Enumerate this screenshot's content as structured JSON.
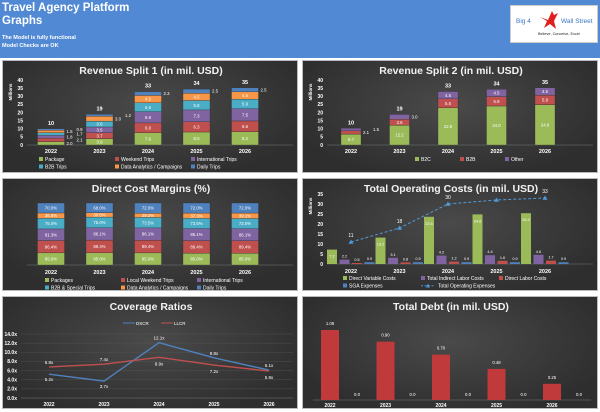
{
  "header": {
    "title_line1": "Travel Agency Platform",
    "title_line2": "Graphs",
    "status_line1": "The Model is fully functional",
    "status_line2": "Model Checks are OK",
    "background_color": "#5189d4"
  },
  "logo": {
    "left_text": "Big 4",
    "right_text": "Wall Street",
    "tagline": "Believe, Conceive, Excel",
    "icon": "red-eagle-icon"
  },
  "chart_data": [
    {
      "type": "bar",
      "stacked": true,
      "title": "Revenue Split 1 (in mil. USD)",
      "ylabel": "Millions",
      "ylim": [
        0,
        40
      ],
      "yticks": [
        0,
        5,
        10,
        15,
        20,
        25,
        30,
        35,
        40
      ],
      "categories": [
        "2022",
        "2023",
        "2024",
        "2025",
        "2026"
      ],
      "totals": [
        "10",
        "19",
        "33",
        "34",
        "35"
      ],
      "series": [
        {
          "name": "Package",
          "color": "#9bbb59",
          "values": [
            2.0,
            3.9,
            7.6,
            8.0,
            8.2
          ]
        },
        {
          "name": "Weekend Trips",
          "color": "#c0504d",
          "values": [
            2.1,
            3.7,
            6.0,
            6.3,
            6.6
          ]
        },
        {
          "name": "International Trips",
          "color": "#8064a2",
          "values": [
            1.8,
            3.5,
            6.9,
            7.3,
            7.5
          ]
        },
        {
          "name": "B2B Trips",
          "color": "#4bacc6",
          "values": [
            1.7,
            3.6,
            5.5,
            5.8,
            5.9
          ]
        },
        {
          "name": "Data Analytics / Campaigns",
          "color": "#f79646",
          "values": [
            1.5,
            3.0,
            4.5,
            4.5,
            4.5
          ]
        },
        {
          "name": "Daily Trips",
          "color": "#4f81bd",
          "values": [
            0.9,
            1.2,
            2.3,
            2.5,
            2.5
          ]
        }
      ],
      "legend": "bottom"
    },
    {
      "type": "bar",
      "stacked": true,
      "title": "Revenue Split 2 (in mil. USD)",
      "ylabel": "Millions",
      "ylim": [
        0,
        40
      ],
      "yticks": [
        0,
        5,
        10,
        15,
        20,
        25,
        30,
        35,
        40
      ],
      "categories": [
        "2022",
        "2023",
        "2024",
        "2025",
        "2026"
      ],
      "totals": [
        "10",
        "19",
        "33",
        "34",
        "35"
      ],
      "series": [
        {
          "name": "B2C",
          "color": "#9bbb59",
          "values": [
            6.7,
            12.2,
            22.9,
            24.0,
            24.8
          ]
        },
        {
          "name": "B2B",
          "color": "#c0504d",
          "values": [
            2.1,
            3.6,
            5.5,
            5.8,
            5.9
          ]
        },
        {
          "name": "Other",
          "color": "#8064a2",
          "values": [
            1.5,
            3.0,
            4.5,
            4.5,
            4.5
          ]
        }
      ],
      "legend": "bottom"
    },
    {
      "type": "bar",
      "stacked": true,
      "title": "Direct Cost Margins (%)",
      "categories": [
        "2022",
        "2023",
        "2024",
        "2025",
        "2026"
      ],
      "series": [
        {
          "name": "Packages",
          "color": "#9bbb59",
          "values": [
            85.0,
            85.0,
            85.0,
            85.0,
            85.0
          ]
        },
        {
          "name": "Local Weekend Trips",
          "color": "#c0504d",
          "values": [
            86.4,
            89.4,
            89.4,
            89.4,
            89.4
          ]
        },
        {
          "name": "International Trips",
          "color": "#8064a2",
          "values": [
            81.3,
            86.1,
            86.1,
            86.1,
            86.1
          ]
        },
        {
          "name": "B2B & Special Trips",
          "color": "#4bacc6",
          "values": [
            75.0,
            75.0,
            73.5,
            73.5,
            73.5
          ]
        },
        {
          "name": "Data Analytics / Campaigns",
          "color": "#f79646",
          "values": [
            36.8,
            30.5,
            29.2,
            37.3,
            39.1
          ]
        },
        {
          "name": "Daily Trips",
          "color": "#4f81bd",
          "values": [
            70.0,
            68.0,
            72.0,
            72.0,
            72.0
          ]
        }
      ],
      "value_suffix": "%",
      "legend": "bottom"
    },
    {
      "type": "bar",
      "stacked": false,
      "title": "Total Operating Costs (in mil. USD)",
      "ylabel": "Millions",
      "ylim": [
        0,
        35
      ],
      "yticks": [
        0,
        5,
        10,
        15,
        20,
        25,
        30,
        35
      ],
      "categories": [
        "2022",
        "2023",
        "2024",
        "2025",
        "2026"
      ],
      "series": [
        {
          "name": "Direct Variable Costs",
          "color": "#9bbb59",
          "values": [
            7.2,
            13.2,
            23.6,
            24.8,
            25.4
          ]
        },
        {
          "name": "Total Indirect Labor Costs",
          "color": "#8064a2",
          "values": [
            2.2,
            3.1,
            4.2,
            4.4,
            4.6
          ]
        },
        {
          "name": "Direct Labor Costs",
          "color": "#c0504d",
          "values": [
            0.5,
            0.8,
            1.2,
            1.6,
            1.7
          ]
        },
        {
          "name": "SGA Expenses",
          "color": "#4f81bd",
          "values": [
            0.9,
            0.9,
            0.9,
            0.9,
            0.9
          ]
        }
      ],
      "line": {
        "name": "Total Operating Expenses",
        "color": "#4f9ad8",
        "values": [
          11,
          18,
          30,
          32,
          33
        ],
        "labels": [
          "11",
          "18",
          "30",
          "",
          "33"
        ]
      },
      "legend": "bottom"
    },
    {
      "type": "line",
      "title": "Coverage Ratios",
      "ylim": [
        0,
        14
      ],
      "yticks": [
        "0.0x",
        "2.0x",
        "4.0x",
        "6.0x",
        "8.0x",
        "10.0x",
        "12.0x",
        "14.0x"
      ],
      "categories": [
        "2022",
        "2023",
        "2024",
        "2025",
        "2026"
      ],
      "series": [
        {
          "name": "DSCR",
          "color": "#4f81bd",
          "values": [
            5.2,
            3.7,
            12.1,
            8.8,
            6.1
          ],
          "labels": [
            "5.2x",
            "3.7x",
            "12.1x",
            "8.8x",
            "6.1x"
          ]
        },
        {
          "name": "LLCR",
          "color": "#c0504d",
          "values": [
            6.8,
            7.4,
            8.9,
            7.2,
            5.9
          ],
          "labels": [
            "6.8x",
            "7.4x",
            "8.9x",
            "7.2x",
            "5.9x"
          ]
        }
      ],
      "legend": "top"
    },
    {
      "type": "bar",
      "stacked": false,
      "title": "Total Debt (in mil. USD)",
      "categories": [
        "2022",
        "2023",
        "2024",
        "2025",
        "2026"
      ],
      "series": [
        {
          "color": "#c0393b",
          "values": [
            1.08,
            0.9,
            0.7,
            0.48,
            0.25
          ],
          "labels": [
            "1.08",
            "0.90",
            "0.70",
            "0.48",
            "0.25"
          ]
        },
        {
          "color": "#4f81bd",
          "values": [
            0,
            0,
            0,
            0,
            0
          ],
          "labels": [
            "0.0",
            "0.0",
            "0.0",
            "0.0",
            "0.0"
          ]
        }
      ]
    }
  ]
}
